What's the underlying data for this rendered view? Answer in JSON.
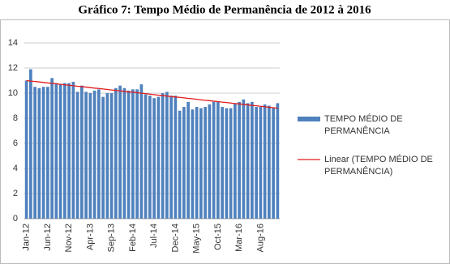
{
  "chart_data": {
    "type": "bar",
    "title": "Gráfico 7: Tempo Médio de Permanência de 2012 à 2016",
    "categories": [
      "Jan-12",
      null,
      null,
      null,
      null,
      "Jun-12",
      null,
      null,
      null,
      null,
      "Nov-12",
      null,
      null,
      null,
      null,
      "Apr-13",
      null,
      null,
      null,
      null,
      "Sep-13",
      null,
      null,
      null,
      null,
      "Feb-14",
      null,
      null,
      null,
      null,
      "Jul-14",
      null,
      null,
      null,
      null,
      "Dec-14",
      null,
      null,
      null,
      null,
      "May-15",
      null,
      null,
      null,
      null,
      "Oct-15",
      null,
      null,
      null,
      null,
      "Mar-16",
      null,
      null,
      null,
      null,
      "Aug-16",
      null,
      null,
      null,
      null
    ],
    "series": [
      {
        "name": "TEMPO MÉDIO DE PERMANÊNCIA",
        "color": "#4f81bd",
        "values": [
          11.0,
          11.9,
          10.5,
          10.4,
          10.5,
          10.5,
          11.2,
          10.8,
          10.7,
          10.8,
          10.8,
          10.9,
          10.1,
          10.6,
          10.1,
          10.0,
          10.2,
          10.3,
          9.7,
          10.0,
          10.0,
          10.4,
          10.6,
          10.4,
          10.2,
          10.3,
          10.3,
          10.7,
          9.9,
          9.8,
          9.6,
          9.7,
          10.0,
          10.1,
          9.8,
          9.8,
          8.6,
          8.9,
          9.3,
          8.7,
          8.9,
          8.8,
          8.9,
          9.1,
          9.3,
          9.3,
          8.9,
          8.8,
          8.8,
          9.2,
          9.3,
          9.5,
          9.2,
          9.3,
          8.9,
          8.9,
          9.1,
          9.0,
          8.8,
          9.2
        ]
      },
      {
        "name": "Linear (TEMPO MÉDIO DE PERMANÊNCIA)",
        "color": "#e31a1c",
        "type": "line",
        "values": [
          11.0,
          10.96,
          10.93,
          10.89,
          10.85,
          10.81,
          10.78,
          10.74,
          10.7,
          10.66,
          10.63,
          10.59,
          10.55,
          10.52,
          10.48,
          10.44,
          10.4,
          10.37,
          10.33,
          10.29,
          10.25,
          10.22,
          10.18,
          10.14,
          10.1,
          10.07,
          10.03,
          9.99,
          9.96,
          9.92,
          9.88,
          9.84,
          9.81,
          9.77,
          9.73,
          9.69,
          9.66,
          9.62,
          9.58,
          9.55,
          9.51,
          9.47,
          9.43,
          9.4,
          9.36,
          9.32,
          9.28,
          9.25,
          9.21,
          9.17,
          9.14,
          9.1,
          9.06,
          9.02,
          8.99,
          8.95,
          8.91,
          8.87,
          8.84,
          8.8
        ]
      }
    ],
    "ylim": [
      0,
      14
    ],
    "yticks": [
      0,
      2,
      4,
      6,
      8,
      10,
      12,
      14
    ],
    "grid": true,
    "legend": "right"
  }
}
